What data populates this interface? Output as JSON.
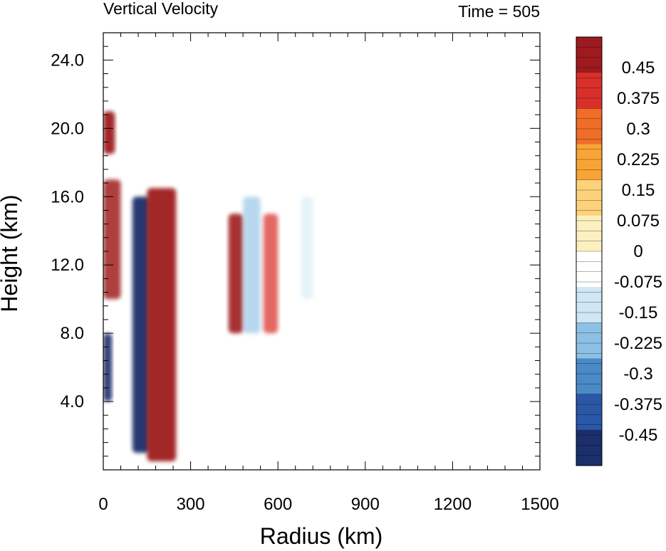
{
  "chart_data": {
    "type": "heatmap",
    "title": "Vertical Velocity",
    "time_label": "Time = 505",
    "xlabel": "Radius (km)",
    "ylabel": "Height (km)",
    "xlim": [
      0,
      1500
    ],
    "ylim": [
      0,
      25.6
    ],
    "x_ticks": [
      0,
      300,
      600,
      900,
      1200,
      1500
    ],
    "x_tick_labels": [
      "0",
      "300",
      "600",
      "900",
      "1200",
      "1500"
    ],
    "y_ticks": [
      4,
      8,
      12,
      16,
      20,
      24
    ],
    "y_tick_labels": [
      "4.0",
      "8.0",
      "12.0",
      "16.0",
      "20.0",
      "24.0"
    ],
    "colorbar": {
      "levels": [
        -0.525,
        0.525
      ],
      "labels": [
        "0.45",
        "0.375",
        "0.3",
        "0.225",
        "0.15",
        "0.075",
        "0",
        "-0.075",
        "-0.15",
        "-0.225",
        "-0.3",
        "-0.375",
        "-0.45"
      ],
      "label_values": [
        0.45,
        0.375,
        0.3,
        0.225,
        0.15,
        0.075,
        0,
        -0.075,
        -0.15,
        -0.225,
        -0.3,
        -0.375,
        -0.45
      ],
      "colors": [
        "#1a2f6b",
        "#2a57a6",
        "#4a8ac6",
        "#8cc0e4",
        "#cfe6f5",
        "#ffffff",
        "#fdf0c0",
        "#fdd27a",
        "#f9a436",
        "#f06d28",
        "#d9302a",
        "#9e1a1f"
      ]
    },
    "features": [
      {
        "type": "updraft",
        "x_range": [
          0,
          40
        ],
        "y_range": [
          18.5,
          21
        ],
        "w": 0.6
      },
      {
        "type": "updraft",
        "x_range": [
          0,
          60
        ],
        "y_range": [
          10,
          17
        ],
        "w": 0.45
      },
      {
        "type": "downdraft",
        "x_range": [
          0,
          30
        ],
        "y_range": [
          4,
          8
        ],
        "w": -0.5
      },
      {
        "type": "downdraft",
        "x_range": [
          100,
          160
        ],
        "y_range": [
          1,
          16
        ],
        "w": -0.55
      },
      {
        "type": "updraft",
        "x_range": [
          150,
          250
        ],
        "y_range": [
          0.5,
          16.5
        ],
        "w": 0.55
      },
      {
        "type": "updraft",
        "x_range": [
          430,
          480
        ],
        "y_range": [
          8,
          15
        ],
        "w": 0.5
      },
      {
        "type": "downdraft",
        "x_range": [
          480,
          540
        ],
        "y_range": [
          8,
          16
        ],
        "w": -0.25
      },
      {
        "type": "updraft",
        "x_range": [
          550,
          600
        ],
        "y_range": [
          8,
          15
        ],
        "w": 0.35
      },
      {
        "type": "downdraft",
        "x_range": [
          680,
          720
        ],
        "y_range": [
          10,
          16
        ],
        "w": -0.15
      }
    ]
  }
}
